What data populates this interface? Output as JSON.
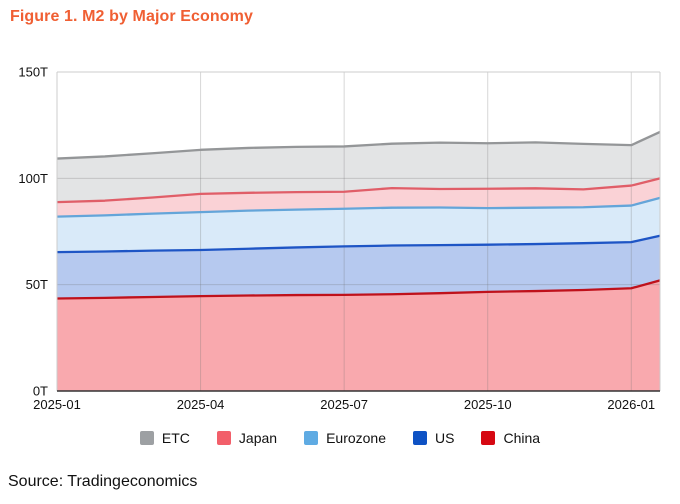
{
  "header": {
    "title": "Figure 1. M2 by Major Economy",
    "title_color": "#f05f33"
  },
  "footer": {
    "source": "Source: Tradingeconomics"
  },
  "legend": {
    "items": [
      {
        "label": "ETC",
        "color": "#9da0a3"
      },
      {
        "label": "Japan",
        "color": "#f25f6a"
      },
      {
        "label": "Eurozone",
        "color": "#5fabe3"
      },
      {
        "label": "US",
        "color": "#0e52c4"
      },
      {
        "label": "China",
        "color": "#d60812"
      }
    ]
  },
  "chart_data": {
    "type": "area",
    "stacked": true,
    "title": "Figure 1. M2 by Major Economy",
    "unit": "T",
    "grid": true,
    "legend_position": "bottom",
    "ylim": [
      0,
      150
    ],
    "y_ticks": [
      {
        "label": "150T",
        "value": 150
      },
      {
        "label": "100T",
        "value": 100
      },
      {
        "label": "50T",
        "value": 50
      },
      {
        "label": "0T",
        "value": 0
      }
    ],
    "x_tick_labels": [
      "2025-01",
      "2025-04",
      "2025-07",
      "2025-10",
      "2026-01"
    ],
    "x_tick_months": [
      0,
      3,
      6,
      9,
      12
    ],
    "x_range_months": [
      0,
      12.6
    ],
    "x_months": [
      0,
      1,
      2,
      3,
      4,
      5,
      6,
      7,
      8,
      9,
      10,
      11,
      12,
      12.6
    ],
    "x_point_labels": [
      "2025-01",
      "2025-02",
      "2025-03",
      "2025-04",
      "2025-05",
      "2025-06",
      "2025-07",
      "2025-08",
      "2025-09",
      "2025-10",
      "2025-11",
      "2025-12",
      "2026-01",
      "2026-01 (latest)"
    ],
    "series": [
      {
        "name": "China",
        "line_color": "#bf111b",
        "fill_color": "#f9a9ae",
        "band_values": [
          43.5,
          43.8,
          44.2,
          44.6,
          44.9,
          45.1,
          45.2,
          45.5,
          46.0,
          46.6,
          47.0,
          47.5,
          48.3,
          52.0
        ]
      },
      {
        "name": "US",
        "line_color": "#1e55c5",
        "fill_color": "#b6c9ef",
        "band_values": [
          21.8,
          21.8,
          21.8,
          21.7,
          22.0,
          22.4,
          22.8,
          22.9,
          22.6,
          22.2,
          22.1,
          22.0,
          21.7,
          21.0
        ]
      },
      {
        "name": "Eurozone",
        "line_color": "#64a5d9",
        "fill_color": "#d9eaf9",
        "band_values": [
          16.7,
          17.0,
          17.4,
          17.8,
          17.9,
          17.8,
          17.7,
          17.8,
          17.7,
          17.2,
          17.1,
          16.9,
          17.2,
          17.8
        ]
      },
      {
        "name": "Japan",
        "line_color": "#e05e68",
        "fill_color": "#fad2d6",
        "band_values": [
          6.8,
          6.9,
          7.6,
          8.6,
          8.4,
          8.2,
          8.0,
          9.2,
          8.7,
          9.1,
          9.1,
          8.4,
          9.4,
          9.2
        ]
      },
      {
        "name": "ETC",
        "line_color": "#949698",
        "fill_color": "#e3e4e5",
        "band_values": [
          20.5,
          20.8,
          20.8,
          20.7,
          21.1,
          21.3,
          21.3,
          20.9,
          21.8,
          21.4,
          21.6,
          21.4,
          19.0,
          21.8
        ]
      }
    ]
  }
}
